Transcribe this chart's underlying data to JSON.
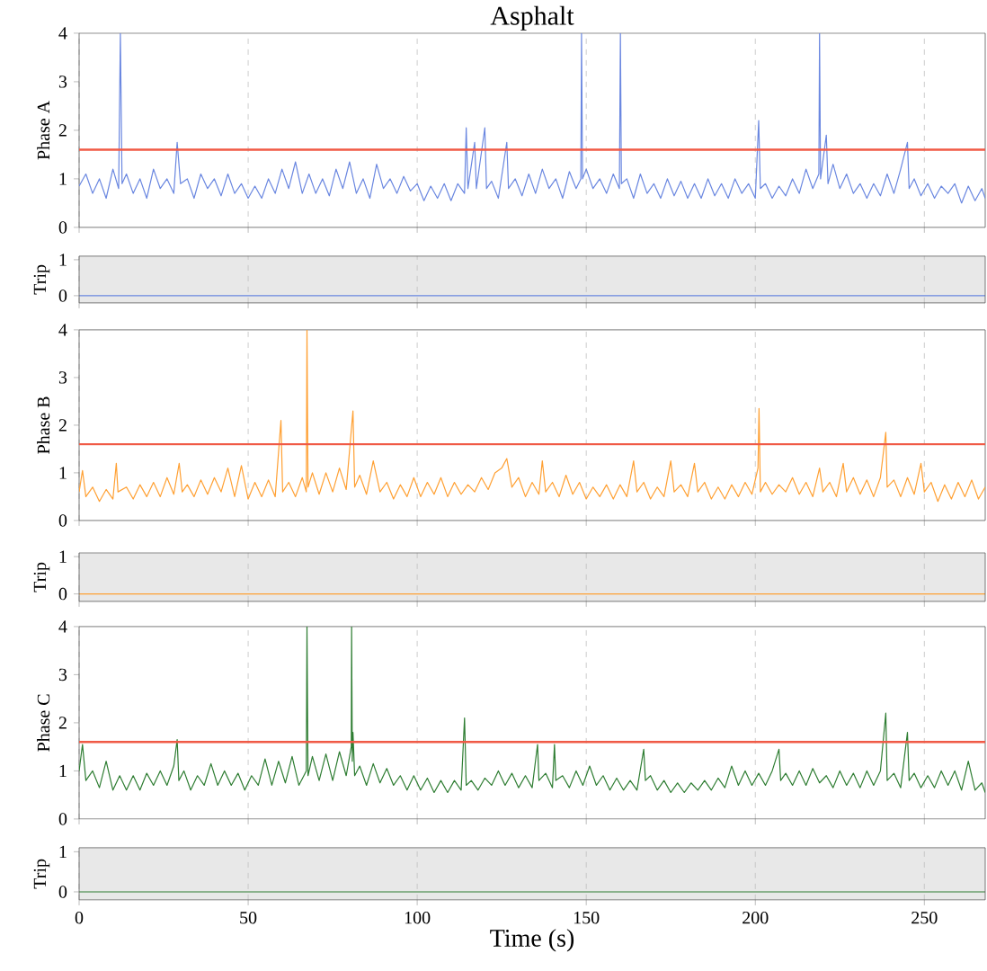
{
  "chart_data": [
    {
      "type": "line",
      "title": "Asphalt",
      "ylabel": "Phase A",
      "xlim": [
        0,
        268
      ],
      "xticks": [
        0,
        50,
        100,
        150,
        200,
        250
      ],
      "ylim": [
        0,
        4
      ],
      "yticks": [
        0,
        1,
        2,
        3,
        4
      ],
      "grid": "x",
      "tick_labels": "y",
      "ref_lines": [
        {
          "axis": "y",
          "value": 1.6,
          "color": "#f05a46"
        }
      ],
      "series": [
        {
          "color": "#6a87e0",
          "x": [
            0,
            2,
            4,
            6,
            8,
            10,
            11.7,
            12.2,
            12.7,
            14,
            16,
            18,
            20,
            22,
            24,
            26,
            28,
            29,
            30,
            32,
            34,
            36,
            38,
            40,
            42,
            44,
            46,
            48,
            50,
            52,
            54,
            56,
            58,
            60,
            62,
            64,
            66,
            68,
            70,
            72,
            74,
            76,
            78,
            80,
            82,
            84,
            86,
            88,
            90,
            92,
            94,
            96,
            98,
            100,
            102,
            104,
            106,
            108,
            110,
            112,
            114,
            114.5,
            115,
            117,
            117.5,
            120,
            120.5,
            122,
            124,
            126.5,
            127,
            129,
            131,
            133,
            135,
            137,
            139,
            141,
            143,
            145,
            147,
            148.4,
            148.6,
            148.9,
            150,
            152,
            154,
            156,
            158,
            159.8,
            160.1,
            160.4,
            162,
            164,
            166,
            168,
            170,
            172,
            174,
            176,
            178,
            180,
            182,
            184,
            186,
            188,
            190,
            192,
            194,
            196,
            198,
            200,
            201,
            201.5,
            203,
            205,
            207,
            209,
            211,
            213,
            215,
            217,
            218.8,
            219,
            219.3,
            221,
            221.5,
            223,
            225,
            227,
            229,
            231,
            233,
            235,
            237,
            239,
            241,
            243,
            245,
            245.5,
            247,
            249,
            251,
            253,
            255,
            257,
            259,
            261,
            263,
            265,
            267,
            268
          ],
          "values": [
            0.85,
            1.1,
            0.7,
            1.0,
            0.6,
            1.2,
            0.8,
            4.0,
            0.9,
            1.1,
            0.7,
            1.0,
            0.6,
            1.2,
            0.8,
            1.0,
            0.7,
            1.75,
            0.9,
            1.0,
            0.6,
            1.1,
            0.8,
            1.0,
            0.65,
            1.1,
            0.7,
            0.9,
            0.6,
            0.85,
            0.6,
            1.0,
            0.7,
            1.2,
            0.8,
            1.35,
            0.7,
            1.1,
            0.7,
            1.0,
            0.65,
            1.2,
            0.8,
            1.35,
            0.7,
            1.0,
            0.6,
            1.3,
            0.8,
            1.0,
            0.7,
            1.05,
            0.75,
            0.9,
            0.55,
            0.85,
            0.6,
            0.9,
            0.55,
            0.9,
            0.7,
            2.05,
            0.8,
            1.75,
            0.8,
            2.05,
            0.8,
            0.95,
            0.6,
            1.75,
            0.8,
            1.0,
            0.65,
            1.1,
            0.7,
            1.2,
            0.8,
            1.0,
            0.6,
            1.15,
            0.8,
            1.0,
            4.0,
            1.0,
            1.2,
            0.8,
            1.0,
            0.7,
            1.1,
            0.8,
            4.0,
            0.9,
            1.0,
            0.6,
            1.1,
            0.7,
            0.9,
            0.6,
            1.0,
            0.65,
            0.95,
            0.6,
            0.9,
            0.6,
            1.0,
            0.65,
            0.9,
            0.6,
            1.0,
            0.7,
            0.9,
            0.6,
            2.2,
            0.8,
            0.9,
            0.6,
            0.85,
            0.65,
            1.0,
            0.7,
            1.2,
            0.8,
            1.1,
            4.0,
            1.0,
            1.9,
            0.9,
            1.3,
            0.8,
            1.1,
            0.7,
            0.9,
            0.6,
            0.9,
            0.65,
            1.1,
            0.7,
            1.2,
            1.75,
            0.8,
            1.0,
            0.65,
            0.9,
            0.6,
            0.85,
            0.7,
            0.9,
            0.5,
            0.85,
            0.55,
            0.8,
            0.6
          ]
        }
      ]
    },
    {
      "type": "line",
      "ylabel": "Trip",
      "xlim": [
        0,
        268
      ],
      "xticks": [
        0,
        50,
        100,
        150,
        200,
        250
      ],
      "ylim": [
        -0.2,
        1.1
      ],
      "yticks": [
        0,
        1
      ],
      "grid": "x",
      "tick_labels": "y",
      "bands": [
        {
          "axis": "y",
          "from": -0.2,
          "to": 1.1,
          "color": "#e8e8e8"
        }
      ],
      "series": [
        {
          "color": "#6a87e0",
          "x": [
            0,
            268
          ],
          "values": [
            0,
            0
          ]
        }
      ]
    },
    {
      "type": "line",
      "ylabel": "Phase B",
      "xlim": [
        0,
        268
      ],
      "xticks": [
        0,
        50,
        100,
        150,
        200,
        250
      ],
      "ylim": [
        0,
        4
      ],
      "yticks": [
        0,
        1,
        2,
        3,
        4
      ],
      "grid": "x",
      "tick_labels": "y",
      "ref_lines": [
        {
          "axis": "y",
          "value": 1.6,
          "color": "#f05a46"
        }
      ],
      "series": [
        {
          "color": "#ffa033",
          "x": [
            0,
            1,
            2,
            4,
            6,
            8,
            10,
            11,
            11.5,
            14,
            16,
            18,
            20,
            22,
            24,
            26,
            28,
            29.6,
            30.5,
            32,
            34,
            36,
            38,
            40,
            42,
            44,
            46,
            48,
            50,
            52,
            54,
            56,
            58,
            59.7,
            60.2,
            62,
            64,
            66,
            67.2,
            67.4,
            67.7,
            69,
            71,
            73,
            75,
            77,
            79,
            81,
            81.5,
            83,
            85,
            87,
            89,
            91,
            93,
            95,
            97,
            99,
            101,
            103,
            105,
            107,
            109,
            111,
            113,
            115,
            117,
            119,
            121,
            123,
            125,
            126.5,
            128,
            130,
            132,
            134,
            136,
            137,
            138,
            140,
            142,
            144,
            146,
            148,
            150,
            152,
            154,
            156,
            158,
            160,
            162,
            164,
            165,
            167,
            169,
            171,
            173,
            175,
            176,
            178,
            180,
            182,
            183,
            185,
            187,
            189,
            191,
            193,
            195,
            197,
            199,
            200.8,
            201.1,
            201.5,
            203,
            205,
            207,
            209,
            211,
            213,
            215,
            217,
            219,
            220,
            222,
            224,
            226,
            227,
            229,
            231,
            233,
            235,
            237,
            238.6,
            239,
            241,
            243,
            245,
            247,
            249,
            250,
            252,
            254,
            256,
            258,
            260,
            262,
            264,
            266,
            268
          ],
          "values": [
            0.6,
            1.05,
            0.5,
            0.7,
            0.4,
            0.65,
            0.45,
            1.2,
            0.6,
            0.7,
            0.45,
            0.75,
            0.5,
            0.8,
            0.5,
            0.9,
            0.55,
            1.2,
            0.6,
            0.75,
            0.5,
            0.85,
            0.55,
            0.9,
            0.6,
            1.1,
            0.5,
            1.15,
            0.45,
            0.8,
            0.5,
            0.85,
            0.5,
            2.1,
            0.6,
            0.8,
            0.5,
            0.9,
            0.6,
            4.0,
            0.7,
            1.0,
            0.55,
            1.0,
            0.6,
            1.1,
            0.65,
            2.3,
            0.7,
            0.95,
            0.55,
            1.25,
            0.6,
            0.8,
            0.45,
            0.75,
            0.5,
            0.9,
            0.5,
            0.8,
            0.55,
            0.9,
            0.5,
            0.8,
            0.55,
            0.75,
            0.6,
            0.9,
            0.65,
            1.0,
            1.1,
            1.3,
            0.7,
            0.9,
            0.5,
            0.8,
            0.55,
            1.25,
            0.6,
            0.8,
            0.5,
            0.95,
            0.55,
            0.8,
            0.45,
            0.7,
            0.5,
            0.75,
            0.45,
            0.75,
            0.5,
            1.25,
            0.6,
            0.8,
            0.45,
            0.7,
            0.5,
            1.25,
            0.6,
            0.75,
            0.5,
            1.2,
            0.6,
            0.8,
            0.45,
            0.7,
            0.45,
            0.75,
            0.5,
            0.8,
            0.55,
            1.1,
            2.35,
            0.6,
            0.8,
            0.55,
            0.75,
            0.6,
            0.9,
            0.55,
            0.8,
            0.5,
            1.1,
            0.6,
            0.8,
            0.5,
            1.2,
            0.6,
            0.9,
            0.55,
            0.85,
            0.5,
            0.9,
            1.85,
            0.7,
            0.85,
            0.5,
            0.9,
            0.55,
            1.2,
            0.6,
            0.8,
            0.4,
            0.75,
            0.45,
            0.8,
            0.5,
            0.85,
            0.45,
            0.7
          ]
        }
      ]
    },
    {
      "type": "line",
      "ylabel": "Trip",
      "xlim": [
        0,
        268
      ],
      "xticks": [
        0,
        50,
        100,
        150,
        200,
        250
      ],
      "ylim": [
        -0.2,
        1.1
      ],
      "yticks": [
        0,
        1
      ],
      "grid": "x",
      "tick_labels": "y",
      "bands": [
        {
          "axis": "y",
          "from": -0.2,
          "to": 1.1,
          "color": "#e8e8e8"
        }
      ],
      "series": [
        {
          "color": "#ffa033",
          "x": [
            0,
            268
          ],
          "values": [
            0,
            0
          ]
        }
      ]
    },
    {
      "type": "line",
      "ylabel": "Phase C",
      "xlim": [
        0,
        268
      ],
      "xticks": [
        0,
        50,
        100,
        150,
        200,
        250
      ],
      "ylim": [
        0,
        4
      ],
      "yticks": [
        0,
        1,
        2,
        3,
        4
      ],
      "grid": "x",
      "tick_labels": "y",
      "ref_lines": [
        {
          "axis": "y",
          "value": 1.6,
          "color": "#f05a46"
        }
      ],
      "series": [
        {
          "color": "#2e7d32",
          "x": [
            0,
            1,
            2,
            4,
            6,
            8,
            10,
            12,
            14,
            16,
            18,
            20,
            22,
            24,
            26,
            28,
            29,
            29.5,
            31,
            33,
            35,
            37,
            39,
            41,
            43,
            45,
            47,
            49,
            51,
            53,
            55,
            57,
            59,
            61,
            63,
            65,
            67.2,
            67.4,
            67.7,
            69,
            71,
            73,
            75,
            77,
            79,
            80.5,
            80.6,
            80.8,
            81,
            81.5,
            83,
            85,
            87,
            89,
            91,
            93,
            95,
            97,
            99,
            101,
            103,
            105,
            107,
            109,
            111,
            113,
            114,
            114.5,
            116,
            118,
            120,
            122,
            124,
            126,
            128,
            130,
            132,
            134,
            135.6,
            136,
            138,
            140,
            140.6,
            141,
            143,
            145,
            147,
            149,
            151,
            153,
            155,
            157,
            159,
            161,
            163,
            165,
            167,
            167.5,
            169,
            171,
            173,
            175,
            177,
            179,
            181,
            183,
            185,
            187,
            189,
            191,
            193,
            195,
            197,
            199,
            201,
            203,
            205,
            207,
            207.5,
            209,
            211,
            213,
            215,
            217,
            219,
            221,
            223,
            225,
            227,
            229,
            231,
            233,
            235,
            237,
            238.6,
            239,
            241,
            243,
            245,
            245.5,
            247,
            249,
            251,
            253,
            255,
            257,
            259,
            261,
            263,
            265,
            267,
            268
          ],
          "values": [
            1.0,
            1.55,
            0.8,
            1.0,
            0.65,
            1.2,
            0.6,
            0.9,
            0.6,
            0.9,
            0.6,
            0.95,
            0.7,
            1.0,
            0.7,
            1.1,
            1.65,
            0.8,
            1.0,
            0.6,
            0.9,
            0.7,
            1.15,
            0.7,
            1.0,
            0.7,
            0.95,
            0.6,
            0.9,
            0.7,
            1.25,
            0.7,
            1.2,
            0.75,
            1.3,
            0.7,
            1.0,
            4.0,
            0.9,
            1.3,
            0.8,
            1.35,
            0.8,
            1.4,
            0.9,
            1.5,
            4.0,
            1.2,
            1.8,
            0.9,
            1.1,
            0.7,
            1.15,
            0.75,
            1.05,
            0.7,
            0.9,
            0.6,
            0.9,
            0.6,
            0.85,
            0.55,
            0.8,
            0.55,
            0.8,
            0.6,
            2.1,
            0.7,
            0.8,
            0.6,
            0.85,
            0.7,
            1.0,
            0.7,
            0.95,
            0.65,
            0.9,
            0.65,
            1.55,
            0.8,
            0.95,
            0.65,
            1.55,
            0.8,
            0.9,
            0.65,
            1.0,
            0.7,
            1.1,
            0.7,
            0.9,
            0.6,
            0.85,
            0.6,
            0.8,
            0.6,
            1.45,
            0.8,
            0.9,
            0.6,
            0.8,
            0.55,
            0.75,
            0.55,
            0.75,
            0.6,
            0.8,
            0.6,
            0.85,
            0.65,
            1.1,
            0.7,
            1.0,
            0.7,
            0.95,
            0.7,
            1.0,
            1.45,
            0.8,
            0.95,
            0.7,
            1.0,
            0.7,
            1.05,
            0.75,
            0.9,
            0.65,
            1.0,
            0.7,
            0.95,
            0.65,
            1.0,
            0.7,
            1.0,
            2.2,
            0.8,
            0.95,
            0.65,
            1.8,
            0.8,
            0.95,
            0.65,
            0.9,
            0.65,
            1.0,
            0.7,
            1.0,
            0.6,
            1.2,
            0.6,
            0.75,
            0.55
          ]
        }
      ]
    },
    {
      "type": "line",
      "ylabel": "Trip",
      "xlabel": "Time (s)",
      "xlim": [
        0,
        268
      ],
      "xticks": [
        0,
        50,
        100,
        150,
        200,
        250
      ],
      "ylim": [
        -0.2,
        1.1
      ],
      "yticks": [
        0,
        1
      ],
      "grid": "x",
      "bands": [
        {
          "axis": "y",
          "from": -0.2,
          "to": 1.1,
          "color": "#e8e8e8"
        }
      ],
      "series": [
        {
          "color": "#2e7d32",
          "x": [
            0,
            268
          ],
          "values": [
            0,
            0
          ]
        }
      ]
    }
  ]
}
